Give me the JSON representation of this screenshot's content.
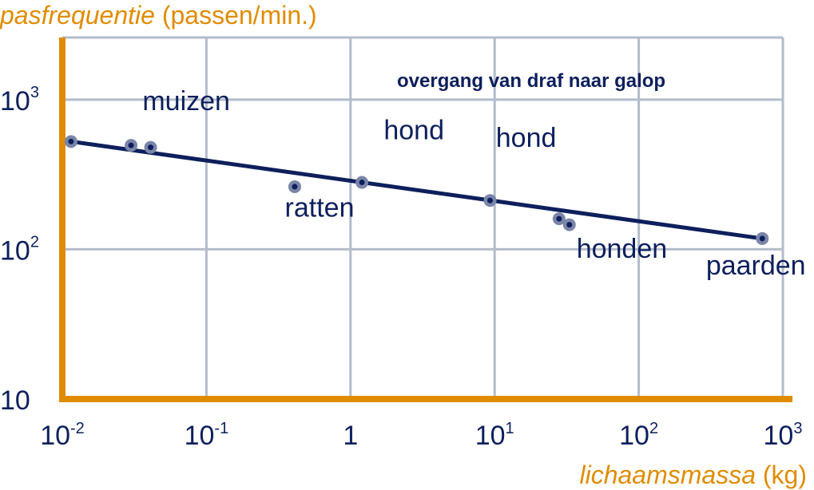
{
  "chart_data": {
    "type": "scatter",
    "title": "overgang van draf naar galop",
    "ylabel": {
      "italic": "pasfrequentie",
      "rest": " (passen/min.)"
    },
    "xlabel": {
      "italic": "lichaamsmassa",
      "rest": " (kg)"
    },
    "x_scale": "log",
    "y_scale": "log",
    "xlim": [
      0.01,
      1000
    ],
    "ylim": [
      10,
      2600
    ],
    "x_ticks": [
      {
        "value": 0.01,
        "base": "10",
        "exp": "-2"
      },
      {
        "value": 0.1,
        "base": "10",
        "exp": "-1"
      },
      {
        "value": 1,
        "base": "1",
        "exp": ""
      },
      {
        "value": 10,
        "base": "10",
        "exp": "1"
      },
      {
        "value": 100,
        "base": "10",
        "exp": "2"
      },
      {
        "value": 1000,
        "base": "10",
        "exp": "3"
      }
    ],
    "y_ticks": [
      {
        "value": 10,
        "base": "10",
        "exp": ""
      },
      {
        "value": 100,
        "base": "10",
        "exp": "2"
      },
      {
        "value": 1000,
        "base": "10",
        "exp": "3"
      }
    ],
    "grid": true,
    "points": [
      {
        "x": 0.0115,
        "y": 525
      },
      {
        "x": 0.03,
        "y": 495
      },
      {
        "x": 0.041,
        "y": 480
      },
      {
        "x": 0.41,
        "y": 262
      },
      {
        "x": 1.2,
        "y": 280
      },
      {
        "x": 9.3,
        "y": 212
      },
      {
        "x": 28,
        "y": 160
      },
      {
        "x": 33,
        "y": 146
      },
      {
        "x": 720,
        "y": 118
      }
    ],
    "trendline": {
      "x": [
        0.0115,
        720
      ],
      "y": [
        525,
        118
      ]
    },
    "annotations": [
      {
        "text": "muizen",
        "x": 0.036,
        "y": 850
      },
      {
        "text": "ratten",
        "x": 0.35,
        "y": 165
      },
      {
        "text": "hond",
        "x": 1.7,
        "y": 545
      },
      {
        "text": "hond",
        "x": 10.2,
        "y": 485
      },
      {
        "text": "honden",
        "x": 37,
        "y": 88
      },
      {
        "text": "paarden",
        "x": 293,
        "y": 68
      }
    ],
    "colors": {
      "axis": "#e08c00",
      "grid": "#b4bccb",
      "trendline": "#0d1f5c",
      "point_fill": "#0d1f5c",
      "point_ring": "#7a86a8",
      "title": "#0d1f5c",
      "text": "#0d1f5c"
    }
  }
}
